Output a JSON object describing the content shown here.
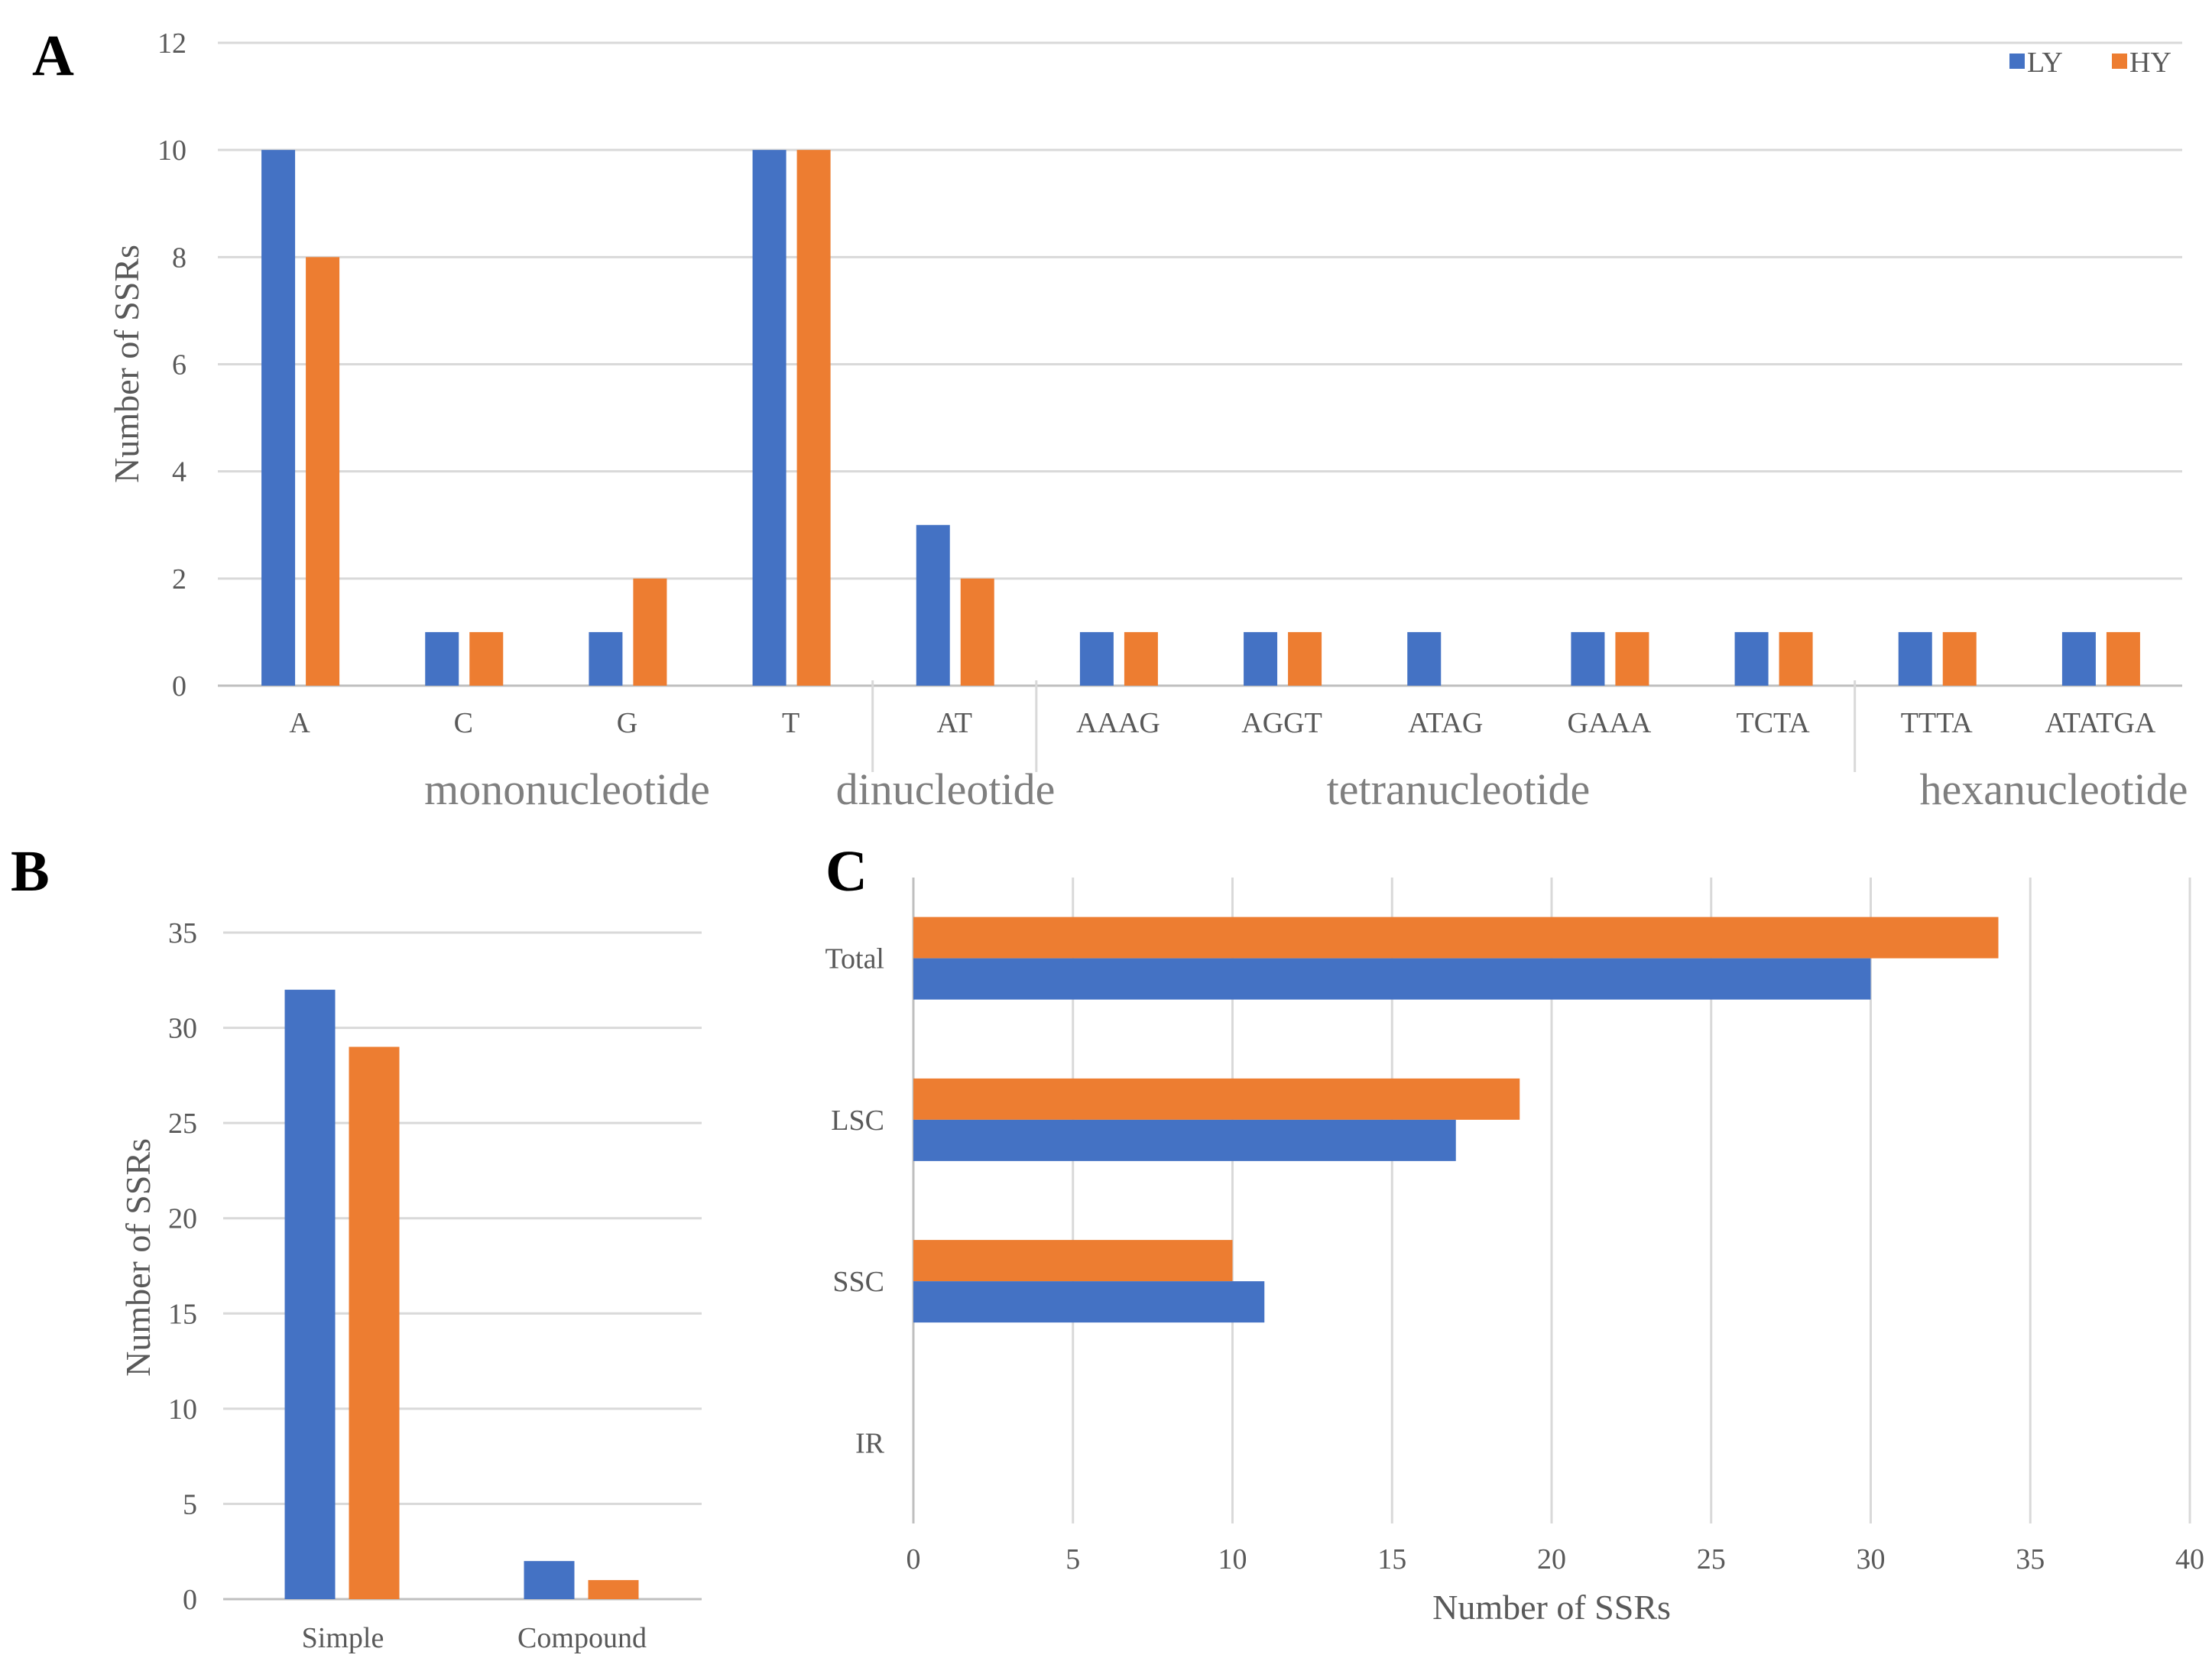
{
  "colors": {
    "LY": "#4472c4",
    "HY": "#ed7d31",
    "grid": "#d9d9d9",
    "axis": "#bfbfbf"
  },
  "chart_data": [
    {
      "panel": "A",
      "type": "bar",
      "categories": [
        "A",
        "C",
        "G",
        "T",
        "AT",
        "AAAG",
        "AGGT",
        "ATAG",
        "GAAA",
        "TCTA",
        "TTTA",
        "ATATGA"
      ],
      "series": [
        {
          "name": "LY",
          "values": [
            10,
            1,
            1,
            10,
            3,
            1,
            1,
            1,
            1,
            1,
            1,
            1
          ]
        },
        {
          "name": "HY",
          "values": [
            8,
            1,
            2,
            10,
            2,
            1,
            1,
            0,
            1,
            1,
            1,
            1
          ]
        }
      ],
      "groups": [
        "mononucleotide",
        "dinucleotide",
        "tetranucleotide",
        "hexanucleotide"
      ],
      "ylabel": "Number of SSRs",
      "ylim": [
        0,
        12
      ],
      "yticks": [
        0,
        2,
        4,
        6,
        8,
        10,
        12
      ],
      "legend": "top-right",
      "grid": true
    },
    {
      "panel": "B",
      "type": "bar",
      "categories": [
        "Simple",
        "Compound"
      ],
      "series": [
        {
          "name": "LY",
          "values": [
            32,
            2
          ]
        },
        {
          "name": "HY",
          "values": [
            29,
            1
          ]
        }
      ],
      "ylabel": "Number of SSRs",
      "ylim": [
        0,
        35
      ],
      "yticks": [
        0,
        5,
        10,
        15,
        20,
        25,
        30,
        35
      ],
      "grid": true
    },
    {
      "panel": "C",
      "type": "bar",
      "orientation": "horizontal",
      "categories": [
        "Total",
        "LSC",
        "SSC",
        "IR"
      ],
      "series": [
        {
          "name": "LY",
          "values": [
            30,
            17,
            11,
            0
          ]
        },
        {
          "name": "HY",
          "values": [
            34,
            19,
            10,
            0
          ]
        }
      ],
      "xlabel": "Number of SSRs",
      "xlim": [
        0,
        40
      ],
      "xticks": [
        0,
        5,
        10,
        15,
        20,
        25,
        30,
        35,
        40
      ],
      "grid": true
    }
  ]
}
